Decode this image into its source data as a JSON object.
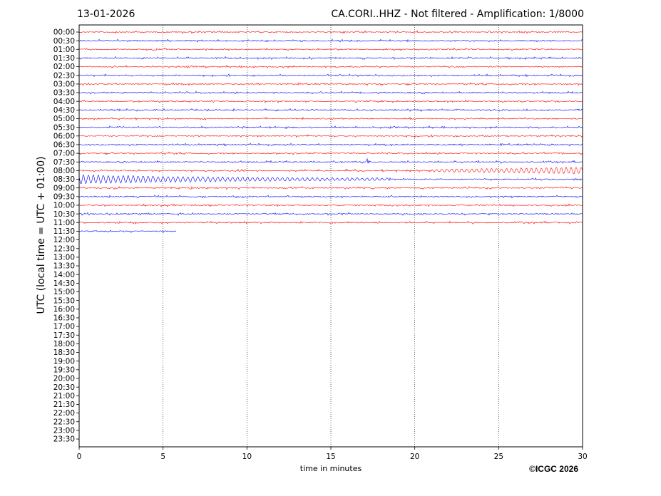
{
  "header": {
    "date": "13-01-2026",
    "title": "CA.CORI..HHZ - Not filtered - Amplification: 1/8000"
  },
  "copyright": "©ICGC 2026",
  "chart_data": {
    "type": "line",
    "title": "CA.CORI..HHZ - Not filtered - Amplification: 1/8000",
    "xlabel": "time in minutes",
    "ylabel": "UTC (local time = UTC + 01:00)",
    "xlim": [
      0,
      30
    ],
    "xticks": [
      0,
      5,
      10,
      15,
      20,
      25,
      30
    ],
    "grid": "vertical dotted lines at x ticks",
    "rows": [
      "00:00",
      "00:30",
      "01:00",
      "01:30",
      "02:00",
      "02:30",
      "03:00",
      "03:30",
      "04:00",
      "04:30",
      "05:00",
      "05:30",
      "06:00",
      "06:30",
      "07:00",
      "07:30",
      "08:00",
      "08:30",
      "09:00",
      "09:30",
      "10:00",
      "10:30",
      "11:00",
      "11:30",
      "12:00",
      "12:30",
      "13:00",
      "13:30",
      "14:00",
      "14:30",
      "15:00",
      "15:30",
      "16:00",
      "16:30",
      "17:00",
      "17:30",
      "18:00",
      "18:30",
      "19:00",
      "19:30",
      "20:00",
      "20:30",
      "21:00",
      "21:30",
      "22:00",
      "22:30",
      "23:00",
      "23:30"
    ],
    "row_colors": [
      "#ff0000",
      "#0000ff"
    ],
    "trace_count": 24,
    "last_trace_end_minute": 5.8,
    "events": [
      {
        "row": "07:30",
        "start_minute": 17.1,
        "end_minute": 18.5,
        "description": "spike"
      },
      {
        "row": "08:00",
        "start_minute": 21.0,
        "end_minute": 30.0,
        "description": "wave train"
      },
      {
        "row": "08:30",
        "start_minute": 0.0,
        "end_minute": 18.5,
        "description": "wave train"
      }
    ]
  }
}
